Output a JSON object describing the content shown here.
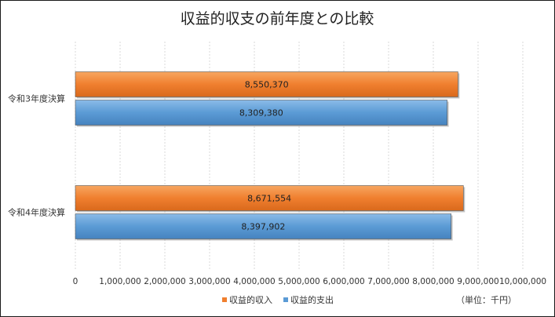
{
  "chart_data": {
    "type": "bar",
    "orientation": "horizontal",
    "title": "収益的収支の前年度との比較",
    "unit_note": "（単位：千円）",
    "categories": [
      "令和3年度決算",
      "令和4年度決算"
    ],
    "series": [
      {
        "name": "収益的収入",
        "values": [
          8550370,
          8671554
        ],
        "labels": [
          "8,550,370",
          "8,671,554"
        ],
        "color": "#f07f2f"
      },
      {
        "name": "収益的支出",
        "values": [
          8309380,
          8397902
        ],
        "labels": [
          "8,309,380",
          "8,397,902"
        ],
        "color": "#5b9bd5"
      }
    ],
    "xlim": [
      0,
      10000000
    ],
    "ticks": [
      0,
      1000000,
      2000000,
      3000000,
      4000000,
      5000000,
      6000000,
      7000000,
      8000000,
      9000000,
      10000000
    ],
    "tick_labels": [
      "0",
      "1,000,000",
      "2,000,000",
      "3,000,000",
      "4,000,000",
      "5,000,000",
      "6,000,000",
      "7,000,000",
      "8,000,000",
      "9,000,000",
      "10,000,000"
    ],
    "grid": true,
    "legend_position": "bottom"
  }
}
